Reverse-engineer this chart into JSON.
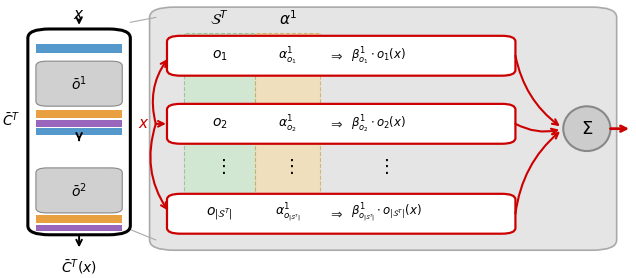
{
  "white": "#ffffff",
  "red": "#cc0000",
  "black": "#000000",
  "blue": "#5599cc",
  "orange": "#e8a040",
  "purple": "#9966bb",
  "green_bg": "#cce8cc",
  "orange_bg": "#f5ddb0",
  "sigma_gray": "#cccccc",
  "rows": [
    {
      "op_label": "$o_1$",
      "alpha_label": "$\\alpha^1_{o_1}$",
      "beta_label": "$\\beta^1_{o_1} \\cdot o_1(x)$"
    },
    {
      "op_label": "$o_2$",
      "alpha_label": "$\\alpha^1_{o_2}$",
      "beta_label": "$\\beta^1_{o_2} \\cdot o_2(x)$"
    },
    {
      "op_label": "$o_{|\\mathcal{S}^T|}$",
      "alpha_label": "$\\alpha^1_{o_{|\\mathcal{S}^T|}}$",
      "beta_label": "$\\beta^1_{o_{|\\mathcal{S}^T|}} \\cdot o_{|\\mathcal{S}^T|}(x)$"
    }
  ]
}
